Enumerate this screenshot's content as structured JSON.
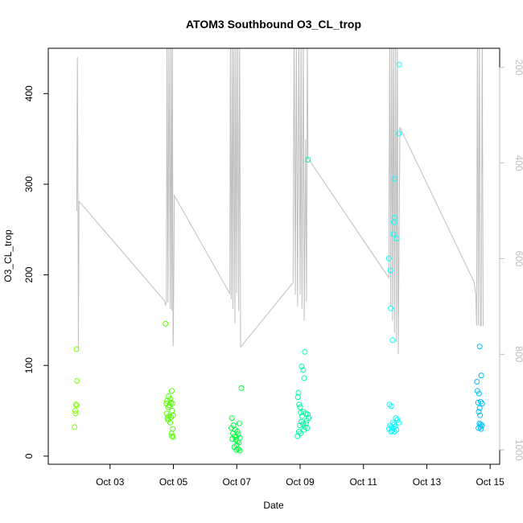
{
  "chart_data": {
    "type": "scatter",
    "title": "ATOM3 Southbound O3_CL_trop",
    "xlabel": "Date",
    "ylabel": "O3_CL_trop",
    "xlim": [
      1.05,
      15.3
    ],
    "ylim": [
      -9,
      450
    ],
    "x_ticks": [
      3,
      5,
      7,
      9,
      11,
      13,
      15
    ],
    "x_tick_labels": [
      "Oct 03",
      "Oct 05",
      "Oct 07",
      "Oct 09",
      "Oct 11",
      "Oct 13",
      "Oct 15"
    ],
    "y_ticks": [
      0,
      100,
      200,
      300,
      400
    ],
    "y_tick_labels": [
      "0",
      "100",
      "200",
      "300",
      "400"
    ],
    "right_axis": {
      "label": "",
      "ticks": [
        200,
        400,
        600,
        800,
        1000
      ],
      "tick_labels": [
        "200",
        "400",
        "600",
        "800",
        "1000"
      ],
      "lim": [
        1030,
        160
      ],
      "color": "#bebebe"
    },
    "grid": false,
    "series": [
      {
        "color": "#7fff00",
        "points": [
          [
            1.94,
            118
          ],
          [
            1.96,
            83
          ],
          [
            1.92,
            57
          ],
          [
            1.95,
            56
          ],
          [
            1.9,
            50
          ],
          [
            1.91,
            47
          ],
          [
            1.88,
            32
          ]
        ]
      },
      {
        "color": "#53ff00",
        "points": [
          [
            4.75,
            146
          ],
          [
            4.95,
            72
          ],
          [
            4.85,
            66
          ],
          [
            4.9,
            63
          ],
          [
            4.8,
            61
          ],
          [
            4.92,
            59
          ],
          [
            4.97,
            58
          ],
          [
            4.78,
            58
          ],
          [
            4.88,
            56
          ],
          [
            4.84,
            54
          ],
          [
            4.96,
            50
          ],
          [
            4.79,
            47
          ],
          [
            4.99,
            45
          ],
          [
            4.86,
            44
          ],
          [
            4.93,
            43
          ],
          [
            4.81,
            42
          ],
          [
            4.83,
            40
          ],
          [
            4.9,
            37
          ],
          [
            4.98,
            30
          ],
          [
            4.94,
            25
          ],
          [
            4.96,
            22
          ],
          [
            4.99,
            21
          ]
        ]
      },
      {
        "color": "#00ff40",
        "points": [
          [
            7.15,
            75
          ],
          [
            6.85,
            42
          ],
          [
            7.08,
            36
          ],
          [
            6.9,
            34
          ],
          [
            6.83,
            31
          ],
          [
            6.95,
            29
          ],
          [
            7.02,
            27
          ],
          [
            6.88,
            25
          ],
          [
            7.05,
            24
          ],
          [
            6.93,
            22
          ],
          [
            6.98,
            21
          ],
          [
            7.1,
            20
          ],
          [
            6.86,
            19
          ],
          [
            6.97,
            18
          ],
          [
            7.02,
            16
          ],
          [
            7.07,
            15
          ],
          [
            7.0,
            12
          ],
          [
            6.92,
            10
          ],
          [
            7.04,
            8
          ],
          [
            6.99,
            7
          ],
          [
            7.09,
            6
          ]
        ]
      },
      {
        "color": "#00ffa0",
        "points": [
          [
            9.25,
            327
          ],
          [
            9.15,
            115
          ],
          [
            9.05,
            99
          ],
          [
            9.1,
            95
          ],
          [
            9.13,
            86
          ],
          [
            8.95,
            70
          ],
          [
            8.93,
            65
          ],
          [
            8.97,
            57
          ],
          [
            9.0,
            54
          ],
          [
            9.1,
            49
          ],
          [
            9.02,
            48
          ],
          [
            9.18,
            47
          ],
          [
            9.24,
            46
          ],
          [
            9.06,
            44
          ],
          [
            9.27,
            42
          ],
          [
            9.21,
            39
          ],
          [
            9.04,
            38
          ],
          [
            9.19,
            36
          ],
          [
            9.09,
            35
          ],
          [
            8.99,
            34
          ],
          [
            9.15,
            32
          ],
          [
            9.23,
            31
          ],
          [
            9.12,
            29
          ],
          [
            8.96,
            27
          ],
          [
            9.01,
            25
          ],
          [
            8.92,
            22
          ]
        ]
      },
      {
        "color": "#00ffff",
        "points": [
          [
            12.13,
            432
          ],
          [
            12.12,
            356
          ],
          [
            11.99,
            306
          ],
          [
            11.98,
            263
          ],
          [
            11.96,
            258
          ],
          [
            11.95,
            245
          ],
          [
            12.05,
            240
          ],
          [
            11.8,
            218
          ],
          [
            11.85,
            205
          ],
          [
            11.86,
            163
          ],
          [
            11.92,
            128
          ],
          [
            11.82,
            57
          ],
          [
            11.88,
            55
          ],
          [
            12.02,
            42
          ],
          [
            12.08,
            40
          ],
          [
            12.12,
            37
          ],
          [
            11.93,
            37
          ],
          [
            11.97,
            35
          ],
          [
            11.84,
            34
          ],
          [
            12.0,
            33
          ],
          [
            11.89,
            32
          ],
          [
            11.94,
            31
          ],
          [
            11.81,
            30
          ],
          [
            12.04,
            29
          ],
          [
            11.91,
            28
          ],
          [
            11.98,
            27
          ],
          [
            11.87,
            27
          ]
        ]
      },
      {
        "color": "#00bfff",
        "points": [
          [
            14.67,
            121
          ],
          [
            14.72,
            89
          ],
          [
            14.58,
            82
          ],
          [
            14.6,
            72
          ],
          [
            14.65,
            69
          ],
          [
            14.7,
            60
          ],
          [
            14.62,
            59
          ],
          [
            14.75,
            58
          ],
          [
            14.67,
            53
          ],
          [
            14.64,
            49
          ],
          [
            14.68,
            45
          ],
          [
            14.66,
            36
          ],
          [
            14.7,
            35
          ],
          [
            14.74,
            34
          ],
          [
            14.69,
            32
          ],
          [
            14.63,
            31
          ],
          [
            14.71,
            30
          ]
        ]
      }
    ],
    "pressure_track": {
      "color": "#bebebe",
      "unit_axis": "right",
      "points": [
        [
          1.95,
          500
        ],
        [
          1.97,
          178
        ],
        [
          1.99,
          500
        ],
        [
          2.0,
          790
        ],
        [
          2.02,
          480
        ],
        [
          4.72,
          688
        ],
        [
          4.75,
          698
        ],
        [
          4.78,
          690
        ],
        [
          4.8,
          130
        ],
        [
          4.83,
          692
        ],
        [
          4.86,
          130
        ],
        [
          4.9,
          705
        ],
        [
          4.92,
          130
        ],
        [
          4.95,
          708
        ],
        [
          4.97,
          130
        ],
        [
          4.99,
          783
        ],
        [
          5.0,
          750
        ],
        [
          5.03,
          468
        ],
        [
          6.78,
          673
        ],
        [
          6.8,
          130
        ],
        [
          6.83,
          685
        ],
        [
          6.86,
          130
        ],
        [
          6.88,
          705
        ],
        [
          6.91,
          130
        ],
        [
          6.94,
          735
        ],
        [
          6.97,
          130
        ],
        [
          7.0,
          672
        ],
        [
          7.03,
          130
        ],
        [
          7.06,
          710
        ],
        [
          7.09,
          130
        ],
        [
          7.12,
          785
        ],
        [
          8.78,
          650
        ],
        [
          8.81,
          130
        ],
        [
          8.85,
          675
        ],
        [
          8.88,
          130
        ],
        [
          8.92,
          700
        ],
        [
          8.96,
          130
        ],
        [
          9.0,
          675
        ],
        [
          9.03,
          130
        ],
        [
          9.06,
          705
        ],
        [
          9.1,
          130
        ],
        [
          9.13,
          730
        ],
        [
          9.17,
          350
        ],
        [
          9.2,
          690
        ],
        [
          9.23,
          130
        ],
        [
          9.25,
          390
        ],
        [
          11.8,
          640
        ],
        [
          11.83,
          130
        ],
        [
          11.86,
          700
        ],
        [
          11.89,
          130
        ],
        [
          11.92,
          730
        ],
        [
          11.95,
          130
        ],
        [
          11.98,
          755
        ],
        [
          12.01,
          130
        ],
        [
          12.04,
          775
        ],
        [
          12.07,
          130
        ],
        [
          12.1,
          800
        ],
        [
          12.15,
          325
        ],
        [
          14.5,
          650
        ],
        [
          14.55,
          680
        ],
        [
          14.57,
          740
        ],
        [
          14.6,
          130
        ],
        [
          14.63,
          740
        ],
        [
          14.66,
          130
        ],
        [
          14.69,
          740
        ],
        [
          14.72,
          740
        ],
        [
          14.75,
          130
        ],
        [
          14.78,
          740
        ]
      ]
    }
  }
}
